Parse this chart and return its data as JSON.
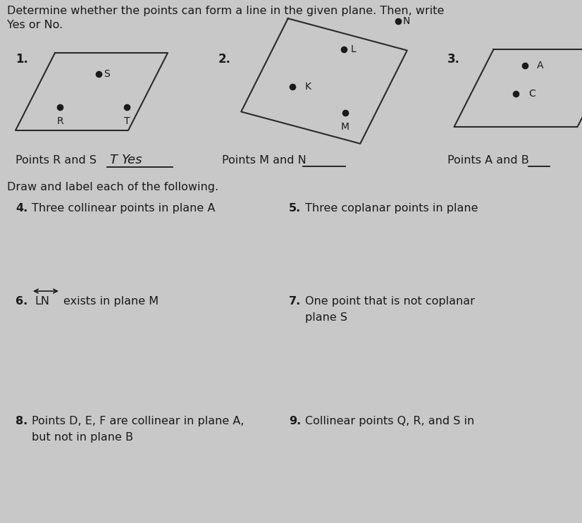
{
  "bg_color": "#c8c8c8",
  "title_line1": "Determine whether the points can form a line in the given plane. Then, write",
  "title_line2": "Yes or No.",
  "section2_title": "Draw and label each of the following.",
  "fig_w": 8.26,
  "fig_h": 7.42,
  "dpi": 100
}
